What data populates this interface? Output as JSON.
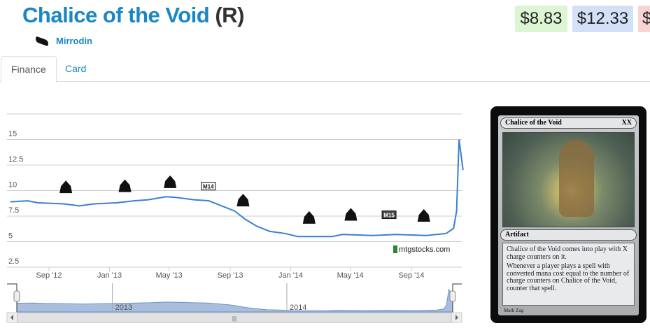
{
  "header": {
    "card_name": "Chalice of the Void",
    "rarity": "(R)",
    "set_name": "Mirrodin"
  },
  "prices": [
    {
      "value": "$8.83",
      "color": "#dcf5d3"
    },
    {
      "value": "$12.33",
      "color": "#d3e0f7"
    },
    {
      "value": "$",
      "color": "#f7d3d3"
    }
  ],
  "tabs": [
    {
      "label": "Finance",
      "active": true
    },
    {
      "label": "Card",
      "active": false
    }
  ],
  "chart_data": {
    "type": "line",
    "title": "",
    "ylim": [
      2.5,
      17.5
    ],
    "y_ticks": [
      "2.5",
      "5",
      "7.5",
      "10",
      "12.5",
      "15"
    ],
    "x_ticks": [
      {
        "label": "Sep '12",
        "date": "2012-09-01"
      },
      {
        "label": "Jan '13",
        "date": "2013-01-01"
      },
      {
        "label": "May '13",
        "date": "2013-05-01"
      },
      {
        "label": "Sep '13",
        "date": "2013-09-01"
      },
      {
        "label": "Jan '14",
        "date": "2014-01-01"
      },
      {
        "label": "May '14",
        "date": "2014-05-01"
      },
      {
        "label": "Sep '14",
        "date": "2014-09-01"
      }
    ],
    "series": [
      {
        "name": "price",
        "color": "#3d7fcf",
        "points": [
          [
            "2012-06-15",
            8.9
          ],
          [
            "2012-07-20",
            9.0
          ],
          [
            "2012-08-10",
            8.8
          ],
          [
            "2012-10-01",
            8.7
          ],
          [
            "2012-11-01",
            8.5
          ],
          [
            "2012-12-01",
            8.7
          ],
          [
            "2013-01-15",
            8.8
          ],
          [
            "2013-02-20",
            9.0
          ],
          [
            "2013-03-20",
            9.1
          ],
          [
            "2013-04-25",
            9.4
          ],
          [
            "2013-05-20",
            9.3
          ],
          [
            "2013-06-20",
            9.1
          ],
          [
            "2013-07-20",
            9.0
          ],
          [
            "2013-08-15",
            8.5
          ],
          [
            "2013-09-10",
            8.0
          ],
          [
            "2013-10-01",
            7.2
          ],
          [
            "2013-10-25",
            6.5
          ],
          [
            "2013-11-20",
            6.0
          ],
          [
            "2013-12-20",
            5.8
          ],
          [
            "2014-01-15",
            5.5
          ],
          [
            "2014-03-25",
            5.5
          ],
          [
            "2014-04-15",
            5.7
          ],
          [
            "2014-06-15",
            5.6
          ],
          [
            "2014-08-01",
            5.7
          ],
          [
            "2014-10-01",
            5.6
          ],
          [
            "2014-11-10",
            5.8
          ],
          [
            "2014-11-25",
            6.3
          ],
          [
            "2014-12-01",
            8.0
          ],
          [
            "2014-12-06",
            15.0
          ],
          [
            "2014-12-10",
            13.5
          ],
          [
            "2014-12-14",
            12.0
          ]
        ]
      }
    ],
    "set_releases": [
      {
        "icon": "return-to-ravnica-icon",
        "date": "2012-10-05",
        "level": 10.3
      },
      {
        "icon": "gatecrash-icon",
        "date": "2013-02-01",
        "level": 10.4
      },
      {
        "icon": "dragons-maze-icon",
        "date": "2013-05-03",
        "level": 10.8
      },
      {
        "icon": "m14-icon",
        "date": "2013-07-19",
        "level": 10.4,
        "text": "M14"
      },
      {
        "icon": "theros-icon",
        "date": "2013-09-27",
        "level": 9.0
      },
      {
        "icon": "born-of-the-gods-icon",
        "date": "2014-02-07",
        "level": 7.3
      },
      {
        "icon": "journey-into-nyx-icon",
        "date": "2014-05-02",
        "level": 7.6
      },
      {
        "icon": "m15-icon",
        "date": "2014-07-18",
        "level": 7.6,
        "text": "M15"
      },
      {
        "icon": "khans-of-tarkir-icon",
        "date": "2014-09-26",
        "level": 7.5
      }
    ],
    "watermark": "mtgstocks.com",
    "navigator_labels": [
      "2013",
      "2014"
    ]
  },
  "card_image": {
    "name": "Chalice of the Void",
    "mana_cost": "XX",
    "type_line": "Artifact",
    "rules": [
      "Chalice of the Void comes into play with X charge counters on it.",
      "Whenever a player plays a spell with converted mana cost equal to the number of charge counters on Chalice of the Void, counter that spell."
    ],
    "artist": "Mark Zug"
  }
}
